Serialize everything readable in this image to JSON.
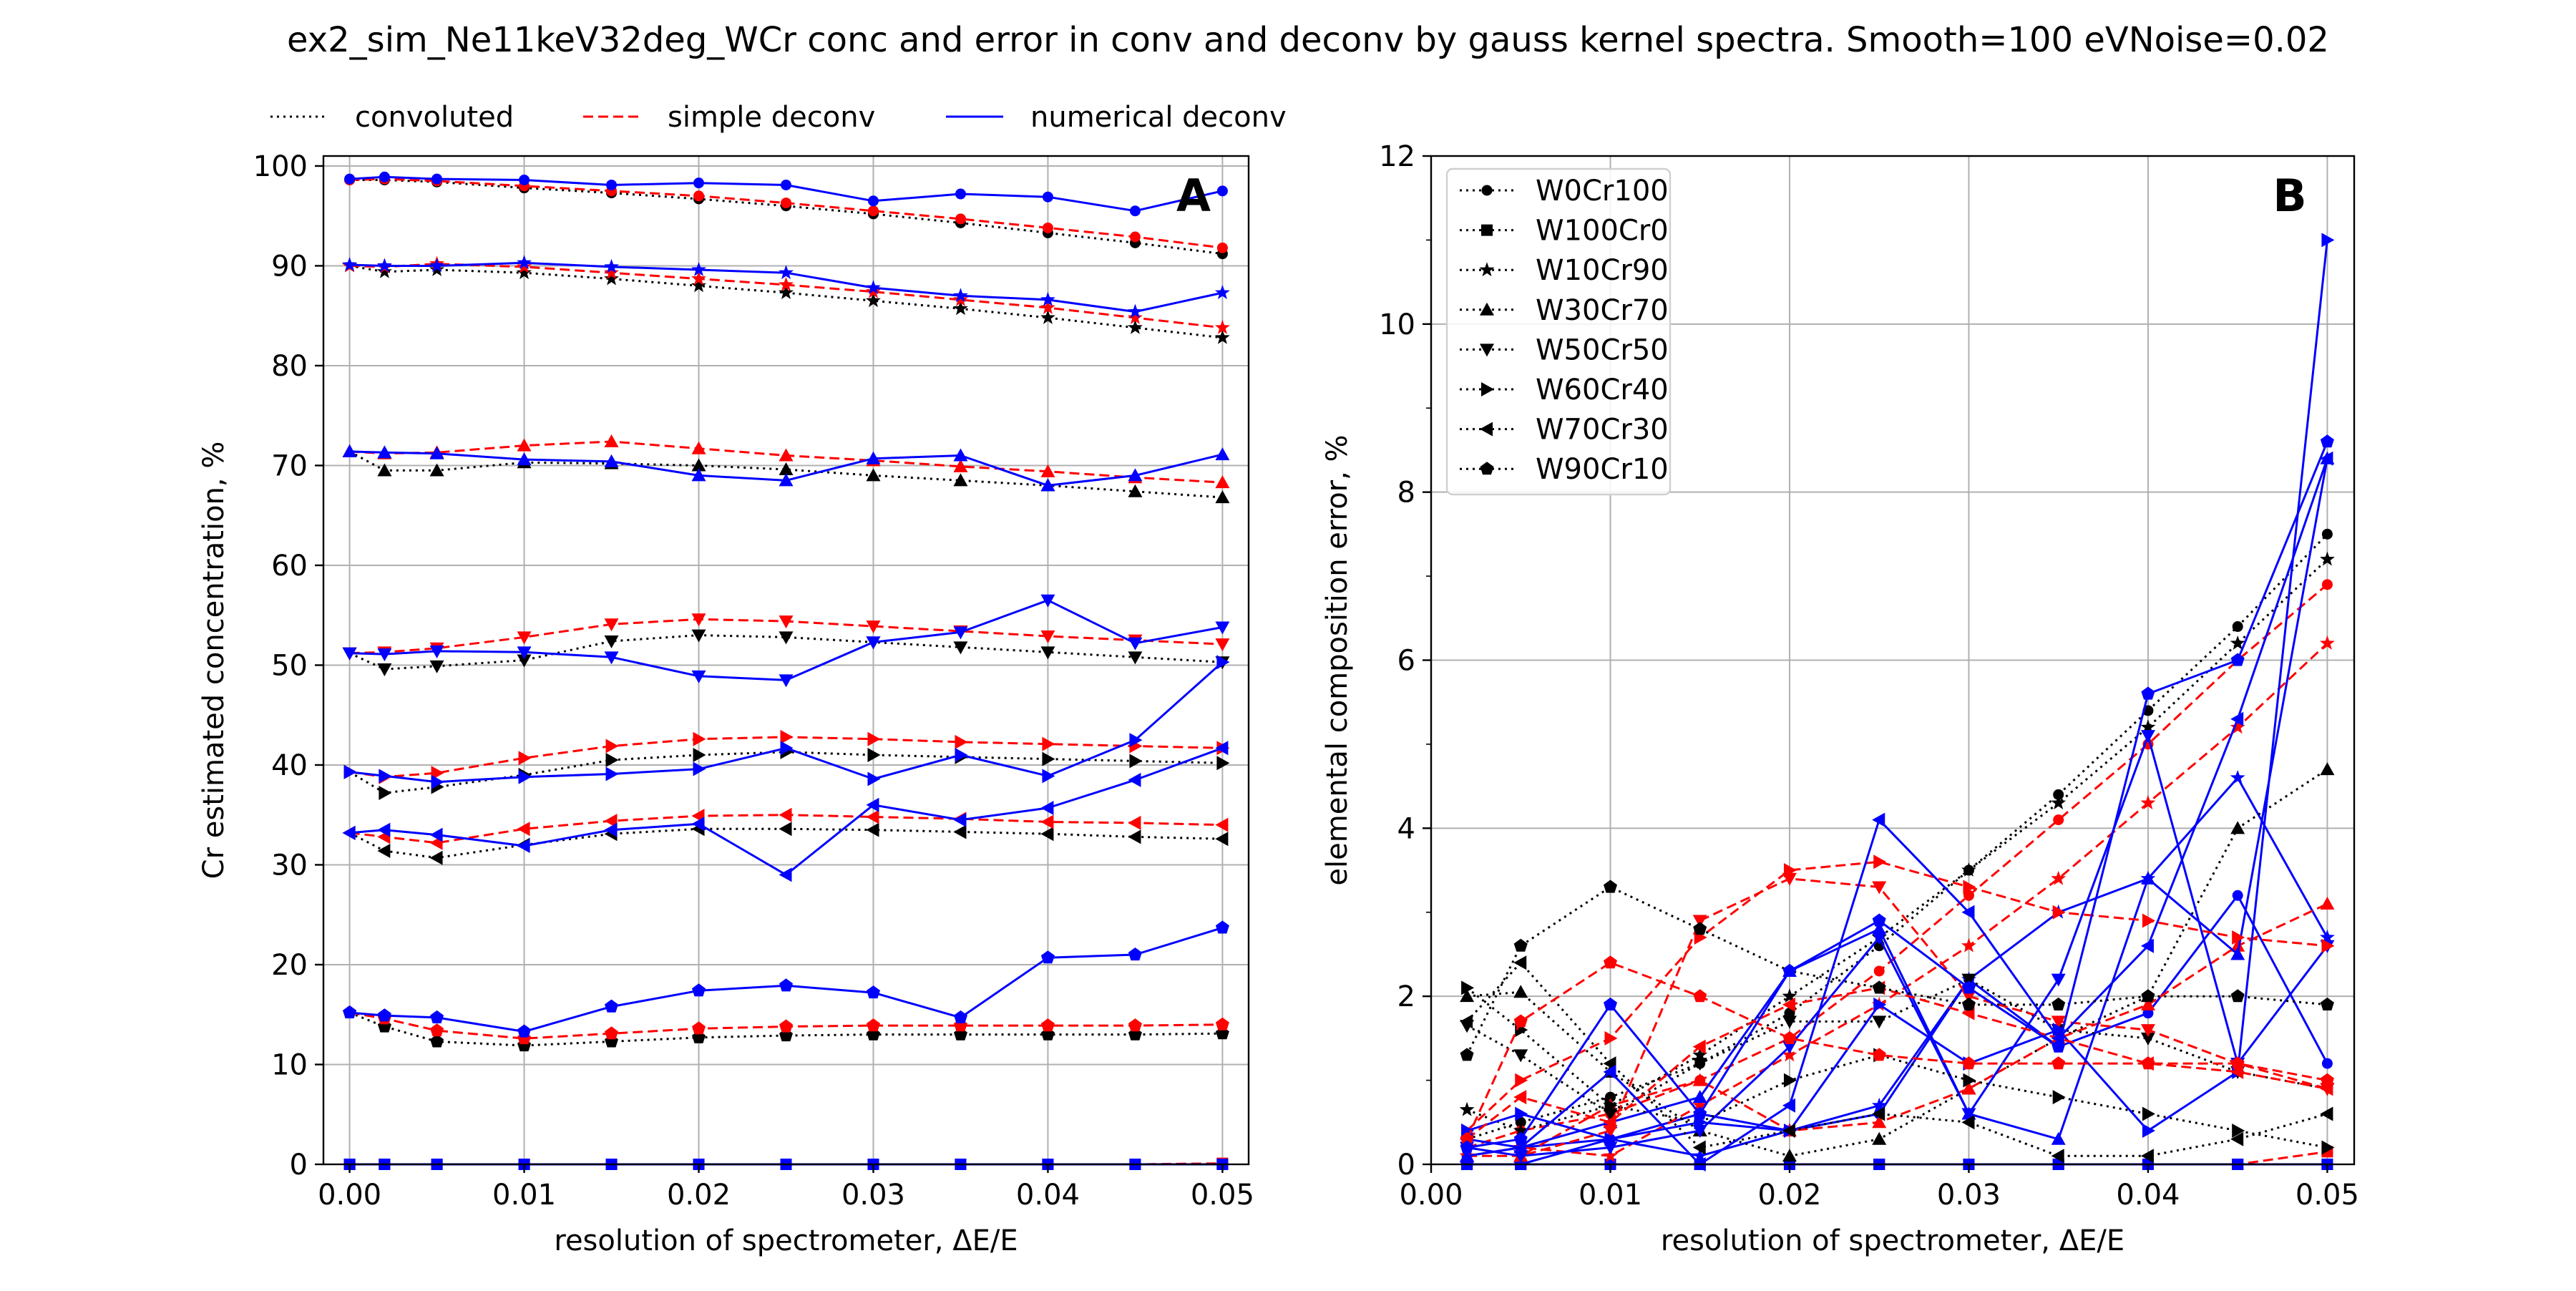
{
  "figure": {
    "title": "ex2_sim_Ne11keV32deg_WCr conc and error in conv and deconv by gauss kernel spectra. Smooth=100 eVNoise=0.02"
  },
  "chart_data": [
    {
      "type": "line",
      "panel_label": "A",
      "xlabel": "resolution of spectrometer, ΔE/E",
      "ylabel": "Cr estimated concentration, %",
      "xlim": [
        -0.0015,
        0.0515
      ],
      "ylim": [
        0,
        101
      ],
      "xticks": [
        "0.00",
        "0.01",
        "0.02",
        "0.03",
        "0.04",
        "0.05"
      ],
      "yticks": [
        "0",
        "10",
        "20",
        "30",
        "40",
        "50",
        "60",
        "70",
        "80",
        "90",
        "100"
      ],
      "grid": true,
      "legend_position": "top, above axes",
      "legend": [
        {
          "label": "convoluted",
          "color": "#000000",
          "style": "dotted"
        },
        {
          "label": "simple deconv",
          "color": "#ff0000",
          "style": "dashed"
        },
        {
          "label": "numerical deconv",
          "color": "#0000ff",
          "style": "solid"
        }
      ],
      "x": [
        0.0,
        0.002,
        0.005,
        0.01,
        0.015,
        0.02,
        0.025,
        0.03,
        0.035,
        0.04,
        0.045,
        0.05
      ],
      "series": [
        {
          "sample": "W0Cr100",
          "method": "convoluted",
          "color": "#000000",
          "values": [
            98.6,
            98.6,
            98.4,
            97.8,
            97.3,
            96.7,
            96.0,
            95.2,
            94.3,
            93.3,
            92.3,
            91.2
          ]
        },
        {
          "sample": "W0Cr100",
          "method": "simple deconv",
          "color": "#ff0000",
          "values": [
            98.6,
            98.7,
            98.5,
            98.0,
            97.5,
            97.0,
            96.3,
            95.5,
            94.7,
            93.8,
            92.9,
            91.8
          ]
        },
        {
          "sample": "W0Cr100",
          "method": "numerical deconv",
          "color": "#0000ff",
          "values": [
            98.7,
            98.9,
            98.7,
            98.6,
            98.1,
            98.3,
            98.1,
            96.5,
            97.2,
            96.9,
            95.5,
            97.5
          ]
        },
        {
          "sample": "W100Cr0",
          "method": "convoluted",
          "color": "#000000",
          "values": [
            0,
            0,
            0,
            0,
            0,
            0,
            0,
            0,
            0,
            0,
            0,
            0
          ]
        },
        {
          "sample": "W100Cr0",
          "method": "simple deconv",
          "color": "#ff0000",
          "values": [
            0,
            0,
            0,
            0,
            0,
            0,
            0,
            0,
            0,
            0,
            0,
            0.1
          ]
        },
        {
          "sample": "W100Cr0",
          "method": "numerical deconv",
          "color": "#0000ff",
          "values": [
            0,
            0,
            0,
            0,
            0,
            0,
            0,
            0,
            0,
            0,
            0,
            0
          ]
        },
        {
          "sample": "W10Cr90",
          "method": "convoluted",
          "color": "#000000",
          "values": [
            90.0,
            89.4,
            89.6,
            89.3,
            88.7,
            88.0,
            87.3,
            86.5,
            85.7,
            84.8,
            83.8,
            82.8
          ]
        },
        {
          "sample": "W10Cr90",
          "method": "simple deconv",
          "color": "#ff0000",
          "values": [
            90.0,
            89.9,
            90.2,
            89.9,
            89.3,
            88.7,
            88.1,
            87.4,
            86.6,
            85.8,
            84.8,
            83.8
          ]
        },
        {
          "sample": "W10Cr90",
          "method": "numerical deconv",
          "color": "#0000ff",
          "values": [
            90.1,
            90.0,
            90.0,
            90.3,
            89.9,
            89.6,
            89.3,
            87.8,
            87.0,
            86.6,
            85.4,
            87.3
          ]
        },
        {
          "sample": "W30Cr70",
          "method": "convoluted",
          "color": "#000000",
          "values": [
            71.4,
            69.5,
            69.5,
            70.3,
            70.2,
            70.0,
            69.6,
            69.0,
            68.5,
            68.0,
            67.4,
            66.8
          ]
        },
        {
          "sample": "W30Cr70",
          "method": "simple deconv",
          "color": "#ff0000",
          "values": [
            71.4,
            71.2,
            71.3,
            72.0,
            72.4,
            71.7,
            71.0,
            70.5,
            69.9,
            69.4,
            68.8,
            68.3
          ]
        },
        {
          "sample": "W30Cr70",
          "method": "numerical deconv",
          "color": "#0000ff",
          "values": [
            71.4,
            71.3,
            71.2,
            70.6,
            70.4,
            69.0,
            68.5,
            70.7,
            71.0,
            68.0,
            69.0,
            71.1
          ]
        },
        {
          "sample": "W50Cr50",
          "method": "convoluted",
          "color": "#000000",
          "values": [
            51.2,
            49.6,
            49.9,
            50.5,
            52.4,
            53.0,
            52.8,
            52.3,
            51.8,
            51.3,
            50.8,
            50.3
          ]
        },
        {
          "sample": "W50Cr50",
          "method": "simple deconv",
          "color": "#ff0000",
          "values": [
            51.2,
            51.3,
            51.7,
            52.8,
            54.1,
            54.6,
            54.4,
            53.9,
            53.4,
            52.9,
            52.5,
            52.1
          ]
        },
        {
          "sample": "W50Cr50",
          "method": "numerical deconv",
          "color": "#0000ff",
          "values": [
            51.2,
            51.1,
            51.4,
            51.3,
            50.8,
            48.9,
            48.5,
            52.3,
            53.3,
            56.5,
            52.2,
            53.8
          ]
        },
        {
          "sample": "W60Cr40",
          "method": "convoluted",
          "color": "#000000",
          "values": [
            39.3,
            37.2,
            37.8,
            39.0,
            40.5,
            41.0,
            41.3,
            41.0,
            40.8,
            40.6,
            40.4,
            40.2
          ]
        },
        {
          "sample": "W60Cr40",
          "method": "simple deconv",
          "color": "#ff0000",
          "values": [
            39.3,
            38.8,
            39.2,
            40.7,
            41.9,
            42.6,
            42.8,
            42.6,
            42.3,
            42.1,
            41.9,
            41.7
          ]
        },
        {
          "sample": "W60Cr40",
          "method": "numerical deconv",
          "color": "#0000ff",
          "values": [
            39.3,
            38.9,
            38.3,
            38.8,
            39.1,
            39.6,
            41.7,
            38.6,
            41.0,
            38.9,
            42.5,
            50.3
          ]
        },
        {
          "sample": "W70Cr30",
          "method": "convoluted",
          "color": "#000000",
          "values": [
            33.2,
            31.4,
            30.7,
            32.0,
            33.1,
            33.6,
            33.6,
            33.5,
            33.3,
            33.1,
            32.8,
            32.6
          ]
        },
        {
          "sample": "W70Cr30",
          "method": "simple deconv",
          "color": "#ff0000",
          "values": [
            33.2,
            32.8,
            32.2,
            33.6,
            34.4,
            34.9,
            35.0,
            34.8,
            34.6,
            34.3,
            34.2,
            34.0
          ]
        },
        {
          "sample": "W70Cr30",
          "method": "numerical deconv",
          "color": "#0000ff",
          "values": [
            33.2,
            33.5,
            33.0,
            31.9,
            33.5,
            34.1,
            29.0,
            36.0,
            34.5,
            35.7,
            38.5,
            41.7
          ]
        },
        {
          "sample": "W90Cr10",
          "method": "convoluted",
          "color": "#000000",
          "values": [
            15.2,
            13.8,
            12.3,
            11.9,
            12.3,
            12.7,
            12.9,
            13.0,
            13.0,
            13.0,
            13.0,
            13.1
          ]
        },
        {
          "sample": "W90Cr10",
          "method": "simple deconv",
          "color": "#ff0000",
          "values": [
            15.2,
            14.6,
            13.4,
            12.6,
            13.1,
            13.6,
            13.8,
            13.9,
            13.9,
            13.9,
            13.9,
            14.0
          ]
        },
        {
          "sample": "W90Cr10",
          "method": "numerical deconv",
          "color": "#0000ff",
          "values": [
            15.2,
            14.9,
            14.7,
            13.3,
            15.8,
            17.4,
            17.9,
            17.2,
            14.7,
            20.7,
            21.0,
            23.7
          ]
        }
      ]
    },
    {
      "type": "line",
      "panel_label": "B",
      "xlabel": "resolution of spectrometer, ΔE/E",
      "ylabel": "elemental composition error, %",
      "xlim": [
        0.0,
        0.0515
      ],
      "ylim": [
        0,
        12
      ],
      "xticks": [
        "0.00",
        "0.01",
        "0.02",
        "0.03",
        "0.04",
        "0.05"
      ],
      "yticks": [
        "0",
        "2",
        "4",
        "6",
        "8",
        "10",
        "12"
      ],
      "grid": true,
      "legend_position": "upper left",
      "legend": [
        {
          "label": "W0Cr100",
          "marker": "circle"
        },
        {
          "label": "W100Cr0",
          "marker": "square"
        },
        {
          "label": "W10Cr90",
          "marker": "star"
        },
        {
          "label": "W30Cr70",
          "marker": "triangle-up"
        },
        {
          "label": "W50Cr50",
          "marker": "triangle-down"
        },
        {
          "label": "W60Cr40",
          "marker": "triangle-right"
        },
        {
          "label": "W70Cr30",
          "marker": "triangle-left"
        },
        {
          "label": "W90Cr10",
          "marker": "pentagon"
        }
      ],
      "x": [
        0.002,
        0.005,
        0.01,
        0.015,
        0.02,
        0.025,
        0.03,
        0.035,
        0.04,
        0.045,
        0.05
      ],
      "series": [
        {
          "sample": "W0Cr100",
          "method": "convoluted",
          "color": "#000000",
          "values": [
            0.3,
            0.5,
            0.8,
            1.2,
            1.8,
            2.6,
            3.5,
            4.4,
            5.4,
            6.4,
            7.5
          ]
        },
        {
          "sample": "W0Cr100",
          "method": "simple deconv",
          "color": "#ff0000",
          "values": [
            0.2,
            0.4,
            0.6,
            1.0,
            1.5,
            2.3,
            3.2,
            4.1,
            5.0,
            6.0,
            6.9
          ]
        },
        {
          "sample": "W0Cr100",
          "method": "numerical deconv",
          "color": "#0000ff",
          "values": [
            0.1,
            0.2,
            0.3,
            0.6,
            0.4,
            0.6,
            2.2,
            1.4,
            1.8,
            3.2,
            1.2
          ]
        },
        {
          "sample": "W100Cr0",
          "method": "convoluted",
          "color": "#000000",
          "values": [
            0,
            0,
            0,
            0,
            0,
            0,
            0,
            0,
            0,
            0,
            0
          ]
        },
        {
          "sample": "W100Cr0",
          "method": "simple deconv",
          "color": "#ff0000",
          "values": [
            0,
            0,
            0,
            0,
            0,
            0,
            0,
            0,
            0,
            0,
            0.15
          ]
        },
        {
          "sample": "W100Cr0",
          "method": "numerical deconv",
          "color": "#0000ff",
          "values": [
            0,
            0,
            0,
            0,
            0,
            0,
            0,
            0,
            0,
            0,
            0
          ]
        },
        {
          "sample": "W10Cr90",
          "method": "convoluted",
          "color": "#000000",
          "values": [
            0.65,
            0.4,
            0.7,
            1.3,
            2.0,
            2.7,
            3.5,
            4.3,
            5.2,
            6.2,
            7.2
          ]
        },
        {
          "sample": "W10Cr90",
          "method": "simple deconv",
          "color": "#ff0000",
          "values": [
            0.1,
            0.2,
            0.1,
            0.7,
            1.3,
            1.9,
            2.6,
            3.4,
            4.3,
            5.2,
            6.2
          ]
        },
        {
          "sample": "W10Cr90",
          "method": "numerical deconv",
          "color": "#0000ff",
          "values": [
            0.0,
            0.0,
            0.3,
            0.1,
            0.4,
            0.7,
            2.2,
            3.0,
            3.4,
            4.6,
            2.7
          ]
        },
        {
          "sample": "W30Cr70",
          "method": "convoluted",
          "color": "#000000",
          "values": [
            2.0,
            2.05,
            1.1,
            0.4,
            0.1,
            0.3,
            0.9,
            1.5,
            2.0,
            4.0,
            4.7
          ]
        },
        {
          "sample": "W30Cr70",
          "method": "simple deconv",
          "color": "#ff0000",
          "values": [
            0.1,
            0.1,
            0.7,
            1.0,
            0.4,
            0.5,
            0.9,
            1.5,
            1.9,
            2.6,
            3.1
          ]
        },
        {
          "sample": "W30Cr70",
          "method": "numerical deconv",
          "color": "#0000ff",
          "values": [
            0.1,
            0.2,
            0.5,
            0.8,
            2.3,
            2.8,
            0.6,
            0.3,
            3.4,
            2.5,
            8.4
          ]
        },
        {
          "sample": "W50Cr50",
          "method": "convoluted",
          "color": "#000000",
          "values": [
            1.65,
            1.3,
            0.6,
            1.2,
            1.7,
            1.7,
            2.2,
            1.6,
            1.5,
            1.1,
            0.9
          ]
        },
        {
          "sample": "W50Cr50",
          "method": "simple deconv",
          "color": "#ff0000",
          "values": [
            0.2,
            0.1,
            0.4,
            2.9,
            3.4,
            3.3,
            2.0,
            1.7,
            1.6,
            1.2,
            0.9
          ]
        },
        {
          "sample": "W50Cr50",
          "method": "numerical deconv",
          "color": "#0000ff",
          "values": [
            0.2,
            0.1,
            0.2,
            0.4,
            1.4,
            2.7,
            0.6,
            2.2,
            5.1,
            1.2,
            2.6
          ]
        },
        {
          "sample": "W60Cr40",
          "method": "convoluted",
          "color": "#000000",
          "values": [
            2.1,
            1.6,
            0.7,
            0.5,
            1.0,
            1.3,
            1.0,
            0.8,
            0.6,
            0.4,
            0.2
          ]
        },
        {
          "sample": "W60Cr40",
          "method": "simple deconv",
          "color": "#ff0000",
          "values": [
            0.4,
            1.0,
            1.5,
            2.7,
            3.5,
            3.6,
            3.3,
            3.0,
            2.9,
            2.7,
            2.6
          ]
        },
        {
          "sample": "W60Cr40",
          "method": "numerical deconv",
          "color": "#0000ff",
          "values": [
            0.4,
            0.6,
            0.3,
            0.5,
            0.4,
            1.9,
            1.2,
            1.6,
            0.4,
            1.1,
            11.0
          ]
        },
        {
          "sample": "W70Cr30",
          "method": "convoluted",
          "color": "#000000",
          "values": [
            1.7,
            2.4,
            1.2,
            0.2,
            0.4,
            0.6,
            0.5,
            0.1,
            0.1,
            0.3,
            0.6
          ]
        },
        {
          "sample": "W70Cr30",
          "method": "simple deconv",
          "color": "#ff0000",
          "values": [
            0.3,
            0.8,
            0.5,
            1.4,
            1.9,
            2.1,
            1.8,
            1.5,
            1.2,
            1.1,
            0.9
          ]
        },
        {
          "sample": "W70Cr30",
          "method": "numerical deconv",
          "color": "#0000ff",
          "values": [
            0.3,
            0.2,
            1.1,
            0.0,
            0.7,
            4.1,
            3.0,
            1.5,
            2.6,
            5.3,
            8.4
          ]
        },
        {
          "sample": "W90Cr10",
          "method": "convoluted",
          "color": "#000000",
          "values": [
            1.3,
            2.6,
            3.3,
            2.8,
            2.3,
            2.1,
            1.9,
            1.9,
            2.0,
            2.0,
            1.9
          ]
        },
        {
          "sample": "W90Cr10",
          "method": "simple deconv",
          "color": "#ff0000",
          "values": [
            0.3,
            1.7,
            2.4,
            2.0,
            1.5,
            1.3,
            1.2,
            1.2,
            1.2,
            1.2,
            1.0
          ]
        },
        {
          "sample": "W90Cr10",
          "method": "numerical deconv",
          "color": "#0000ff",
          "values": [
            0.2,
            0.3,
            1.9,
            0.6,
            2.3,
            2.9,
            2.1,
            1.4,
            5.6,
            6.0,
            8.6
          ]
        }
      ]
    }
  ]
}
